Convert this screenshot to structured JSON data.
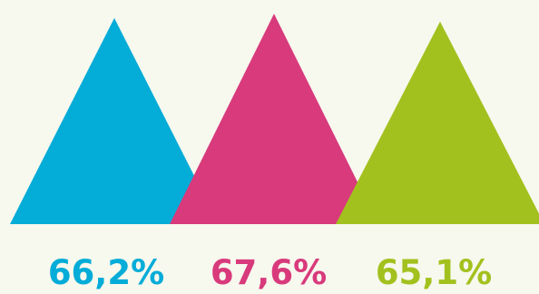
{
  "chart_data": {
    "type": "bar",
    "categories": [
      "",
      "",
      ""
    ],
    "values": [
      66.2,
      67.6,
      65.1
    ],
    "labels": [
      "66,2%",
      "67,6%",
      "65,1%"
    ],
    "colors": [
      "#04acd8",
      "#d83a7c",
      "#a3c11e"
    ],
    "title": "",
    "xlabel": "",
    "ylabel": "",
    "grid": false,
    "legend": "none"
  },
  "colors": {
    "background": "#f7f8ee"
  }
}
